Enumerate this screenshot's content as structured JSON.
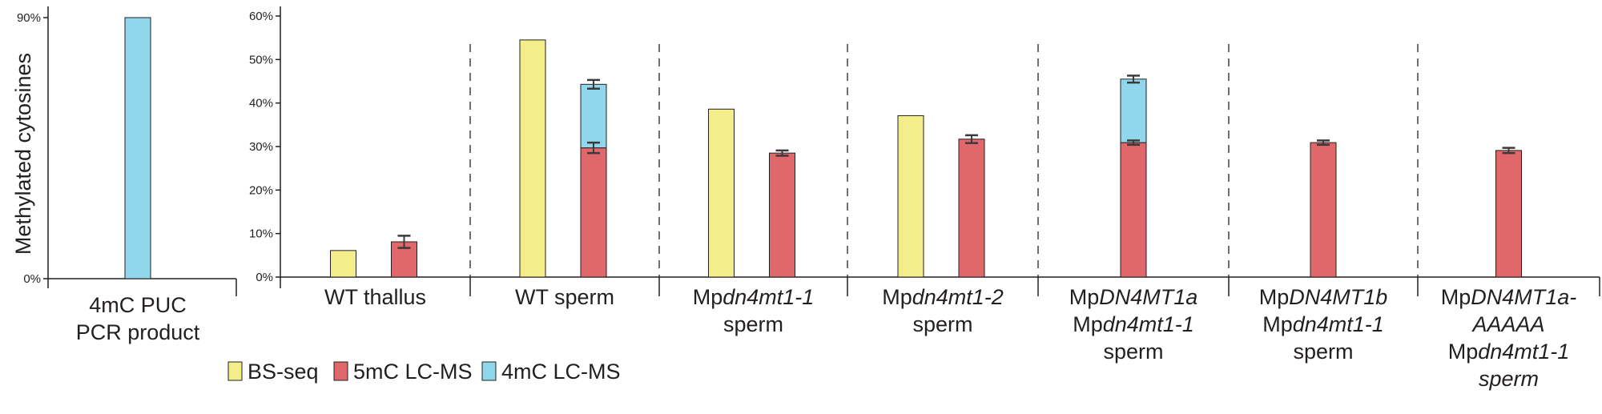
{
  "colors": {
    "BS-seq": "#f4ee8a",
    "5mC LC-MS": "#e0676a",
    "4mC LC-MS": "#91d7ec",
    "axis": "#231f20",
    "errorbar": "#3a3a3a"
  },
  "chart_data": [
    {
      "type": "bar",
      "title": "",
      "xlabel": "",
      "ylabel": "Methylated cytosines",
      "ylim": [
        0,
        90
      ],
      "ytick_labels": [
        "0%",
        "90%"
      ],
      "categories": [
        {
          "lines": [
            [
              {
                "t": "4mC PUC"
              }
            ],
            [
              {
                "t": "PCR product"
              }
            ]
          ]
        }
      ],
      "series": [
        {
          "name": "4mC LC-MS",
          "values": [
            90
          ]
        }
      ]
    },
    {
      "type": "bar",
      "title": "",
      "xlabel": "",
      "ylabel": "",
      "ylim": [
        0,
        60
      ],
      "ytick_labels": [
        "0%",
        "10%",
        "20%",
        "30%",
        "40%",
        "50%",
        "60%"
      ],
      "grid": false,
      "group_separators": "dashed",
      "legend_position": "bottom-left",
      "categories": [
        {
          "lines": [
            [
              {
                "t": "WT thallus"
              }
            ]
          ]
        },
        {
          "lines": [
            [
              {
                "t": "WT sperm"
              }
            ]
          ]
        },
        {
          "lines": [
            [
              {
                "t": "Mp"
              },
              {
                "t": "dn4mt1-1",
                "i": true
              }
            ],
            [
              {
                "t": "sperm"
              }
            ]
          ]
        },
        {
          "lines": [
            [
              {
                "t": "Mp"
              },
              {
                "t": "dn4mt1-2",
                "i": true
              }
            ],
            [
              {
                "t": "sperm"
              }
            ]
          ]
        },
        {
          "lines": [
            [
              {
                "t": "Mp"
              },
              {
                "t": "DN4MT1a",
                "i": true
              }
            ],
            [
              {
                "t": "Mp"
              },
              {
                "t": "dn4mt1-1",
                "i": true
              }
            ],
            [
              {
                "t": "sperm"
              }
            ]
          ]
        },
        {
          "lines": [
            [
              {
                "t": "Mp"
              },
              {
                "t": "DN4MT1b",
                "i": true
              }
            ],
            [
              {
                "t": "Mp"
              },
              {
                "t": "dn4mt1-1",
                "i": true
              }
            ],
            [
              {
                "t": "sperm"
              }
            ]
          ]
        },
        {
          "lines": [
            [
              {
                "t": "Mp"
              },
              {
                "t": "DN4MT1a-",
                "i": true
              }
            ],
            [
              {
                "t": "AAAAA",
                "i": true
              }
            ],
            [
              {
                "t": "Mp"
              },
              {
                "t": "dn4mt1-1",
                "i": true
              }
            ],
            [
              {
                "t": "sperm",
                "i": true
              }
            ]
          ]
        }
      ],
      "series": [
        {
          "name": "BS-seq",
          "values": [
            6.1,
            54.5,
            38.6,
            37.1,
            null,
            null,
            null
          ]
        },
        {
          "name": "5mC LC-MS",
          "values": [
            8.1,
            29.7,
            28.5,
            31.7,
            30.9,
            30.9,
            29.1
          ],
          "error": [
            1.4,
            1.2,
            0.6,
            0.9,
            0.5,
            0.5,
            0.6
          ]
        },
        {
          "name": "4mC LC-MS",
          "stacked_on": "5mC LC-MS",
          "values": [
            null,
            14.6,
            null,
            null,
            14.6,
            null,
            null
          ],
          "error": [
            null,
            1.0,
            null,
            null,
            0.8,
            null,
            null
          ]
        }
      ]
    }
  ]
}
